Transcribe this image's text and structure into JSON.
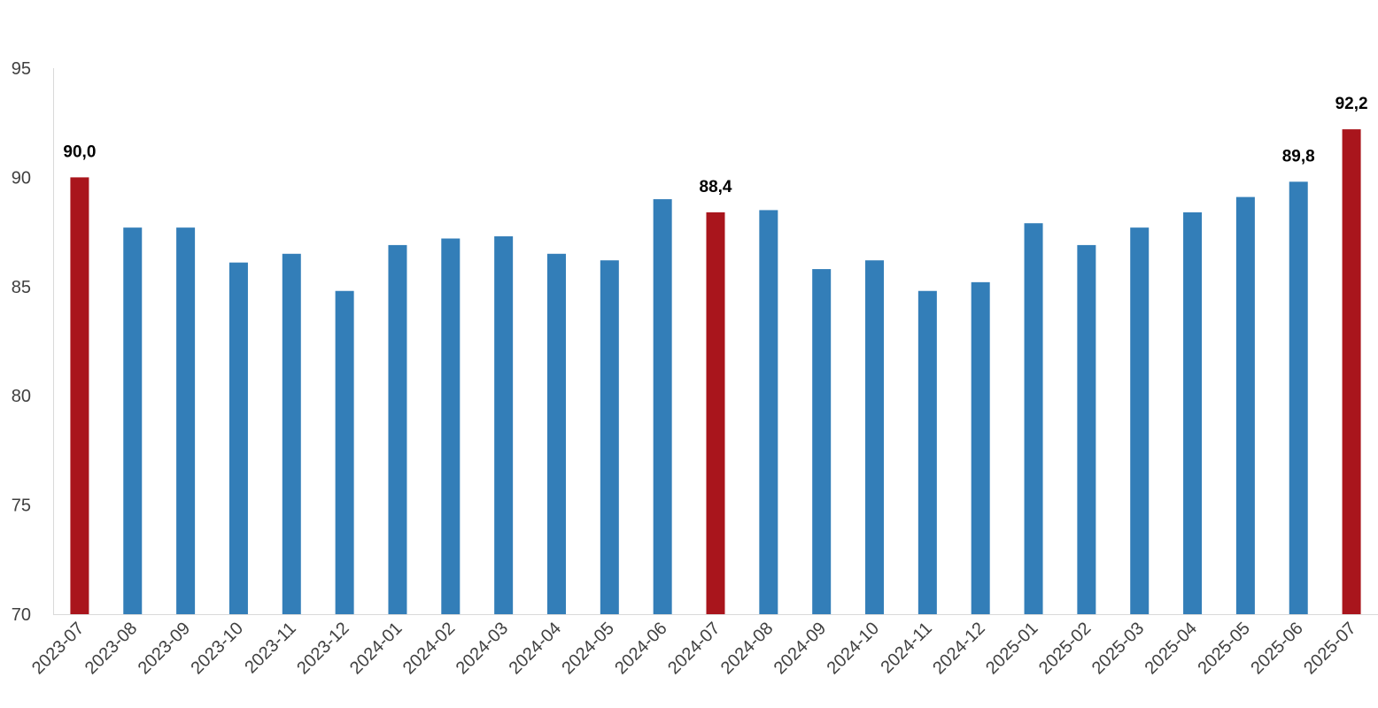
{
  "chart_data": {
    "type": "bar",
    "title": "",
    "xlabel": "",
    "ylabel": "",
    "ylim": [
      70,
      95
    ],
    "yticks": [
      "70",
      "75",
      "80",
      "85",
      "90",
      "95"
    ],
    "grid": false,
    "legend": "none",
    "categories": [
      "2023-07",
      "2023-08",
      "2023-09",
      "2023-10",
      "2023-11",
      "2023-12",
      "2024-01",
      "2024-02",
      "2024-03",
      "2024-04",
      "2024-05",
      "2024-06",
      "2024-07",
      "2024-08",
      "2024-09",
      "2024-10",
      "2024-11",
      "2024-12",
      "2025-01",
      "2025-02",
      "2025-03",
      "2025-04",
      "2025-05",
      "2025-06",
      "2025-07"
    ],
    "values": [
      90.0,
      87.7,
      87.7,
      86.1,
      86.5,
      84.8,
      86.9,
      87.2,
      87.3,
      86.5,
      86.2,
      89.0,
      88.4,
      88.5,
      85.8,
      86.2,
      84.8,
      85.2,
      87.9,
      86.9,
      87.7,
      88.4,
      89.1,
      89.8,
      92.2
    ],
    "highlighted": [
      "2023-07",
      "2024-07",
      "2025-07"
    ],
    "data_labels": [
      {
        "category": "2023-07",
        "text": "90,0"
      },
      {
        "category": "2024-07",
        "text": "88,4"
      },
      {
        "category": "2025-06",
        "text": "89,8"
      },
      {
        "category": "2025-07",
        "text": "92,2"
      }
    ],
    "colors": {
      "bar": "#337EB8",
      "highlight": "#A9151C",
      "axis": "#D9D9D9",
      "tick_text": "#404040",
      "label_text": "#000000"
    }
  }
}
